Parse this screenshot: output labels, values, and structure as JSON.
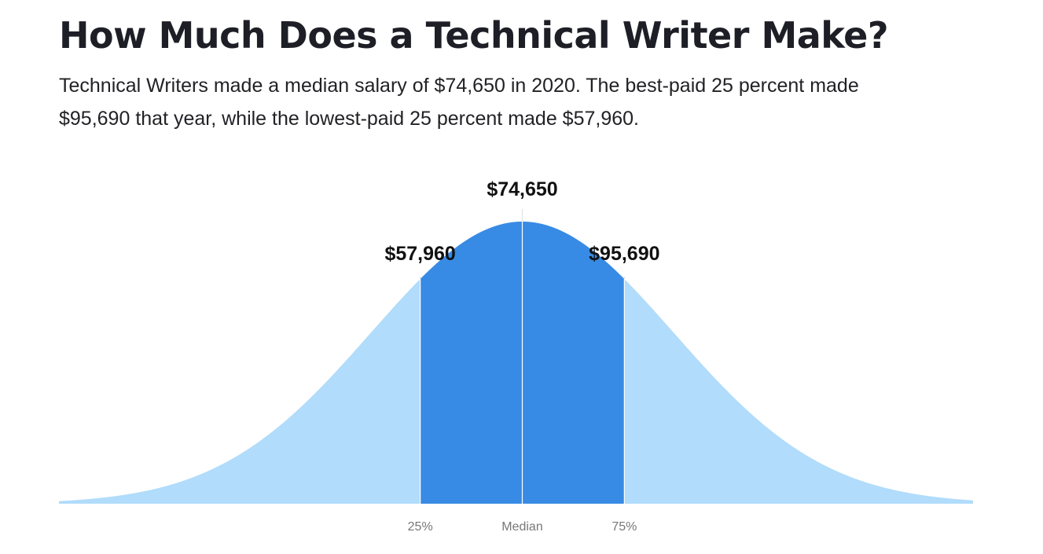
{
  "header": {
    "title": "How Much Does a Technical Writer Make?",
    "description": "Technical Writers made a median salary of $74,650 in 2020. The best-paid 25 percent made $95,690 that year, while the lowest-paid 25 percent made $57,960."
  },
  "chart_data": {
    "type": "area",
    "distribution": "normal",
    "markers": [
      {
        "percentile": 25,
        "value": 57960,
        "value_label": "$57,960",
        "tick_label": "25%"
      },
      {
        "percentile": 50,
        "value": 74650,
        "value_label": "$74,650",
        "tick_label": "Median"
      },
      {
        "percentile": 75,
        "value": 95690,
        "value_label": "$95,690",
        "tick_label": "75%"
      }
    ],
    "colors": {
      "outer": "#b1dcfb",
      "middle": "#388be4",
      "marker_line": "#e0e0e0",
      "center_line": "#ffffff"
    }
  }
}
